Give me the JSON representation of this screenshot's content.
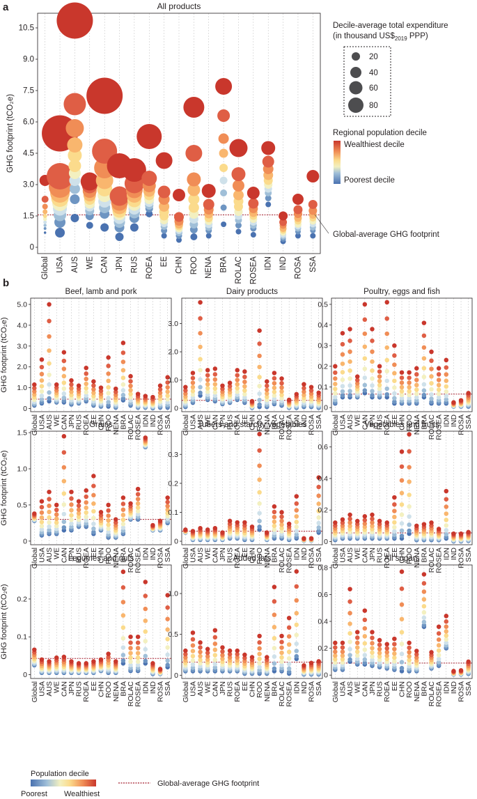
{
  "panel_labels": {
    "a": "a",
    "b": "b"
  },
  "legend": {
    "size_title_line1": "Decile-average total expenditure",
    "size_title_line2_pre": "(in thousand US$",
    "size_title_line2_sub": "2019",
    "size_title_line2_post": " PPP)",
    "size_values": [
      "20",
      "40",
      "60",
      "80"
    ],
    "color_title": "Regional population decile",
    "color_top": "Wealthiest decile",
    "color_bottom": "Poorest decile",
    "global_avg_label": "Global-average GHG footprint",
    "bottom_title": "Population decile",
    "bottom_poorest": "Poorest",
    "bottom_wealthiest": "Wealthiest",
    "bottom_line_label": "Global-average GHG footprint"
  },
  "colors": {
    "deciles": [
      "#4a72b0",
      "#6e95c2",
      "#a0bfd8",
      "#cfe1ea",
      "#f3f0c0",
      "#fbdb8c",
      "#f9b66e",
      "#f08d56",
      "#df5e45",
      "#c9372c"
    ],
    "global_line": "#a51f2e",
    "grid": "#bfbfbf"
  },
  "chart_data": {
    "regions": [
      "Global",
      "USA",
      "AUS",
      "WE",
      "CAN",
      "JPN",
      "RUS",
      "ROEA",
      "EE",
      "CHN",
      "ROO",
      "NENA",
      "BRA",
      "ROLAC",
      "ROSEA",
      "IDN",
      "IND",
      "ROSA",
      "SSA"
    ],
    "ylabel": "GHG footprint (tCO₂e)",
    "main": {
      "type": "scatter",
      "title": "All products",
      "ylim": [
        -0.3,
        11.2
      ],
      "ticks": [
        0,
        1.5,
        3.0,
        4.5,
        6.0,
        7.5,
        9.0,
        10.5
      ],
      "tick_labels": [
        "0",
        "1.5",
        "3.0",
        "4.5",
        "6.0",
        "7.5",
        "9.0",
        "10.5"
      ],
      "global_avg": 1.55,
      "series": [
        {
          "values": [
            0.7,
            0.9,
            1.05,
            1.2,
            1.35,
            1.5,
            1.7,
            1.95,
            2.3,
            3.2
          ],
          "sizes": [
            3.5,
            4,
            4.5,
            5,
            5.5,
            6,
            7,
            8,
            10,
            16
          ]
        },
        {
          "values": [
            0.7,
            1.2,
            1.55,
            1.85,
            2.1,
            2.35,
            2.6,
            2.9,
            3.4,
            5.45
          ],
          "sizes": [
            14,
            16,
            18,
            20,
            22,
            25,
            28,
            32,
            38,
            52
          ]
        },
        {
          "values": [
            1.4,
            2.3,
            2.8,
            3.2,
            3.55,
            3.9,
            4.4,
            4.9,
            5.7,
            6.85,
            10.85
          ],
          "sizes": [
            12,
            14,
            15,
            16,
            17,
            18,
            20,
            22,
            26,
            32,
            52
          ]
        },
        {
          "values": [
            1.05,
            1.5,
            1.75,
            1.95,
            2.1,
            2.3,
            2.5,
            2.7,
            2.95,
            3.15
          ],
          "sizes": [
            10,
            12,
            13,
            14,
            15,
            16,
            18,
            20,
            22,
            26
          ]
        },
        {
          "values": [
            0.95,
            1.6,
            1.9,
            2.2,
            2.5,
            2.8,
            3.2,
            3.8,
            4.6,
            7.25
          ],
          "sizes": [
            12,
            14,
            16,
            18,
            20,
            22,
            25,
            30,
            36,
            52
          ]
        },
        {
          "values": [
            0.5,
            0.95,
            1.2,
            1.4,
            1.6,
            1.75,
            1.95,
            2.15,
            2.45,
            3.9
          ],
          "sizes": [
            12,
            14,
            16,
            17,
            18,
            20,
            22,
            24,
            28,
            36
          ]
        },
        {
          "values": [
            0.95,
            1.4,
            1.65,
            1.85,
            2.05,
            2.25,
            2.5,
            2.75,
            3.05,
            3.7
          ],
          "sizes": [
            12,
            14,
            16,
            17,
            18,
            20,
            22,
            24,
            28,
            34
          ]
        },
        {
          "values": [
            1.6,
            1.85,
            2.0,
            2.15,
            2.3,
            2.5,
            2.7,
            2.95,
            3.3,
            5.3
          ],
          "sizes": [
            10,
            11,
            12,
            13,
            14,
            15,
            17,
            19,
            22,
            36
          ]
        },
        {
          "values": [
            0.55,
            0.8,
            1.0,
            1.15,
            1.3,
            1.5,
            1.7,
            1.95,
            2.3,
            2.65,
            4.15
          ],
          "sizes": [
            8,
            9,
            10,
            11,
            12,
            13,
            14,
            15,
            16,
            18,
            24
          ]
        },
        {
          "values": [
            0.35,
            0.55,
            0.7,
            0.8,
            0.9,
            1.0,
            1.1,
            1.25,
            1.45,
            2.5
          ],
          "sizes": [
            8,
            9,
            10,
            10,
            11,
            11,
            12,
            13,
            14,
            18
          ]
        },
        {
          "values": [
            0.5,
            0.85,
            1.1,
            1.35,
            1.6,
            1.9,
            2.3,
            2.75,
            3.25,
            4.5,
            6.7
          ],
          "sizes": [
            10,
            11,
            12,
            13,
            14,
            15,
            16,
            18,
            20,
            24,
            30
          ]
        },
        {
          "values": [
            0.55,
            0.8,
            0.95,
            1.1,
            1.25,
            1.4,
            1.6,
            1.8,
            2.05,
            2.7
          ],
          "sizes": [
            8,
            9,
            10,
            11,
            11,
            12,
            13,
            14,
            16,
            20
          ]
        },
        {
          "values": [
            1.1,
            1.9,
            2.6,
            3.2,
            3.8,
            4.5,
            5.2,
            6.3,
            7.7
          ],
          "sizes": [
            8,
            9,
            10,
            11,
            12,
            13,
            15,
            18,
            24
          ]
        },
        {
          "values": [
            0.75,
            1.05,
            1.3,
            1.5,
            1.7,
            1.95,
            2.2,
            2.5,
            2.95,
            3.5,
            4.75
          ],
          "sizes": [
            8,
            9,
            10,
            11,
            12,
            13,
            14,
            15,
            17,
            20,
            26
          ]
        },
        {
          "values": [
            0.6,
            0.9,
            1.05,
            1.2,
            1.35,
            1.5,
            1.65,
            1.85,
            2.1,
            2.6
          ],
          "sizes": [
            8,
            9,
            10,
            10,
            11,
            11,
            12,
            13,
            15,
            18
          ]
        },
        {
          "values": [
            2.05,
            2.35,
            2.6,
            2.8,
            3.0,
            3.2,
            3.45,
            3.75,
            4.1,
            4.75
          ],
          "sizes": [
            8,
            9,
            10,
            11,
            12,
            13,
            14,
            15,
            17,
            20
          ]
        },
        {
          "values": [
            0.28,
            0.4,
            0.5,
            0.6,
            0.7,
            0.8,
            0.9,
            1.05,
            1.2,
            1.5
          ],
          "sizes": [
            8,
            8,
            8,
            9,
            9,
            9,
            10,
            10,
            11,
            13
          ]
        },
        {
          "values": [
            0.55,
            0.75,
            0.9,
            1.0,
            1.1,
            1.25,
            1.4,
            1.6,
            1.8,
            2.3
          ],
          "sizes": [
            8,
            8,
            9,
            9,
            10,
            10,
            11,
            12,
            13,
            16
          ]
        },
        {
          "values": [
            0.55,
            0.8,
            0.95,
            1.1,
            1.25,
            1.4,
            1.55,
            1.75,
            2.05,
            3.4
          ],
          "sizes": [
            8,
            8,
            9,
            9,
            10,
            10,
            11,
            12,
            13,
            18
          ]
        }
      ]
    },
    "small": [
      {
        "title": "Beef, lamb and pork",
        "ylim": [
          -0.15,
          5.3
        ],
        "ticks": [
          0,
          1.0,
          2.0,
          3.0,
          4.0,
          5.0
        ],
        "tick_labels": [
          "0",
          "1.0",
          "2.0",
          "3.0",
          "4.0",
          "5.0"
        ],
        "global_avg": 0.45,
        "tops": [
          1.15,
          2.35,
          5.0,
          1.15,
          2.7,
          1.35,
          1.1,
          1.95,
          1.3,
          1.0,
          2.45,
          0.95,
          3.15,
          1.55,
          0.7,
          0.6,
          0.55,
          1.1,
          1.5
        ],
        "bottoms": [
          0.15,
          0.25,
          0.35,
          0.3,
          0.3,
          0.2,
          0.25,
          0.35,
          0.15,
          0.1,
          0.1,
          0.05,
          0.4,
          0.15,
          0.05,
          0.05,
          0.02,
          0.05,
          0.05
        ]
      },
      {
        "title": "Dairy products",
        "ylim": [
          -0.12,
          3.9
        ],
        "ticks": [
          0,
          1.0,
          2.0,
          3.0
        ],
        "tick_labels": [
          "0",
          "1.0",
          "2.0",
          "3.0"
        ],
        "global_avg": 0.28,
        "tops": [
          0.75,
          1.25,
          3.75,
          1.35,
          1.4,
          0.8,
          0.9,
          1.35,
          1.3,
          0.25,
          2.75,
          0.95,
          1.25,
          1.05,
          0.3,
          0.5,
          0.85,
          0.75,
          0.55
        ],
        "bottoms": [
          0.05,
          0.2,
          0.45,
          0.3,
          0.25,
          0.15,
          0.2,
          0.3,
          0.2,
          0.02,
          0.05,
          0.05,
          0.15,
          0.1,
          0.02,
          0.02,
          0.05,
          0.05,
          0.02
        ]
      },
      {
        "title": "Poultry, eggs and fish",
        "ylim": [
          -0.02,
          0.53
        ],
        "ticks": [
          0,
          0.1,
          0.2,
          0.3,
          0.4,
          0.5
        ],
        "tick_labels": [
          "0",
          "0.1",
          "0.2",
          "0.3",
          "0.4",
          "0.5"
        ],
        "global_avg": 0.065,
        "tops": [
          0.2,
          0.36,
          0.38,
          0.15,
          0.5,
          0.38,
          0.2,
          0.51,
          0.3,
          0.17,
          0.17,
          0.19,
          0.41,
          0.27,
          0.19,
          0.23,
          0.025,
          0.035,
          0.07
        ],
        "bottoms": [
          0.02,
          0.05,
          0.05,
          0.05,
          0.07,
          0.05,
          0.05,
          0.05,
          0.02,
          0.02,
          0.02,
          0.02,
          0.05,
          0.02,
          0.02,
          0.02,
          0.005,
          0.005,
          0.005
        ]
      },
      {
        "title": "Grains",
        "ylim": [
          -0.05,
          1.52
        ],
        "ticks": [
          0,
          0.5,
          1.0,
          1.5
        ],
        "tick_labels": [
          "0",
          "0.5",
          "1.0",
          "1.5"
        ],
        "global_avg": 0.3,
        "tops": [
          0.38,
          0.55,
          0.68,
          0.5,
          1.45,
          0.68,
          0.55,
          0.7,
          0.9,
          0.4,
          0.5,
          0.3,
          0.6,
          0.52,
          0.72,
          1.43,
          0.22,
          0.28,
          0.6
        ],
        "bottoms": [
          0.28,
          0.08,
          0.1,
          0.1,
          0.15,
          0.15,
          0.2,
          0.2,
          0.1,
          0.15,
          0.05,
          0.05,
          0.1,
          0.3,
          0.3,
          1.3,
          0.15,
          0.15,
          0.25
        ]
      },
      {
        "title": "Tubers and starchy vegetables",
        "ylim": [
          -0.012,
          0.38
        ],
        "ticks": [
          0,
          0.1,
          0.2,
          0.3
        ],
        "tick_labels": [
          "0",
          "0.1",
          "0.2",
          "0.3"
        ],
        "global_avg": 0.035,
        "tops": [
          0.04,
          0.035,
          0.045,
          0.04,
          0.045,
          0.03,
          0.07,
          0.065,
          0.065,
          0.05,
          0.37,
          0.03,
          0.12,
          0.1,
          0.06,
          0.155,
          0.01,
          0.01,
          0.22
        ],
        "bottoms": [
          0.03,
          0.005,
          0.005,
          0.005,
          0.005,
          0.005,
          0.01,
          0.01,
          0.005,
          0.005,
          0.04,
          0.005,
          0.01,
          0.01,
          0.005,
          0.01,
          0.002,
          0.002,
          0.03
        ]
      },
      {
        "title": "Vegetables and fruits",
        "ylim": [
          -0.02,
          0.7
        ],
        "ticks": [
          0,
          0.2,
          0.4,
          0.6
        ],
        "tick_labels": [
          "0",
          "0.2",
          "0.4",
          "0.6"
        ],
        "global_avg": 0.055,
        "tops": [
          0.12,
          0.14,
          0.17,
          0.13,
          0.16,
          0.17,
          0.13,
          0.12,
          0.28,
          0.57,
          0.68,
          0.1,
          0.11,
          0.12,
          0.08,
          0.32,
          0.05,
          0.05,
          0.06
        ],
        "bottoms": [
          0.01,
          0.02,
          0.02,
          0.02,
          0.02,
          0.02,
          0.02,
          0.02,
          0.02,
          0.02,
          0.05,
          0.01,
          0.01,
          0.01,
          0.01,
          0.02,
          0.002,
          0.002,
          0.005
        ]
      },
      {
        "title": "Legumes and nuts",
        "ylim": [
          -0.01,
          0.29
        ],
        "ticks": [
          0,
          0.1,
          0.2
        ],
        "tick_labels": [
          "0",
          "0.1",
          "0.2"
        ],
        "global_avg": 0.043,
        "tops": [
          0.066,
          0.04,
          0.035,
          0.045,
          0.047,
          0.035,
          0.03,
          0.03,
          0.035,
          0.04,
          0.055,
          0.035,
          0.272,
          0.1,
          0.1,
          0.245,
          0.03,
          0.015,
          0.21
        ],
        "bottoms": [
          0.025,
          0.005,
          0.005,
          0.005,
          0.005,
          0.005,
          0.005,
          0.005,
          0.005,
          0.01,
          0.005,
          0.005,
          0.03,
          0.01,
          0.01,
          0.03,
          0.002,
          0.002,
          0.02
        ]
      },
      {
        "title": "Added fats",
        "ylim": [
          -0.04,
          1.35
        ],
        "ticks": [
          0,
          0.5,
          1.0
        ],
        "tick_labels": [
          "0",
          "0.5",
          "1.0"
        ],
        "global_avg": 0.16,
        "tops": [
          0.3,
          0.52,
          0.4,
          0.32,
          0.55,
          0.34,
          0.3,
          0.3,
          0.25,
          0.22,
          0.48,
          0.22,
          1.08,
          0.48,
          0.7,
          1.27,
          0.12,
          0.15,
          0.17
        ],
        "bottoms": [
          0.05,
          0.05,
          0.05,
          0.05,
          0.05,
          0.05,
          0.05,
          0.05,
          0.02,
          0.02,
          0.02,
          0.02,
          0.05,
          0.05,
          0.02,
          0.2,
          0.01,
          0.01,
          0.01
        ]
      },
      {
        "title": "All sugars",
        "ylim": [
          -0.025,
          0.82
        ],
        "ticks": [
          0,
          0.2,
          0.4,
          0.6,
          0.8
        ],
        "tick_labels": [
          "0",
          "0.2",
          "0.4",
          "0.6",
          "0.8"
        ],
        "global_avg": 0.09,
        "tops": [
          0.24,
          0.24,
          0.64,
          0.32,
          0.48,
          0.32,
          0.26,
          0.23,
          0.27,
          0.77,
          0.24,
          0.18,
          0.75,
          0.17,
          0.36,
          0.44,
          0.03,
          0.035,
          0.1
        ],
        "bottoms": [
          0.04,
          0.04,
          0.1,
          0.08,
          0.08,
          0.07,
          0.06,
          0.05,
          0.04,
          0.03,
          0.03,
          0.03,
          0.36,
          0.05,
          0.07,
          0.2,
          0.005,
          0.005,
          0.01
        ]
      }
    ]
  }
}
